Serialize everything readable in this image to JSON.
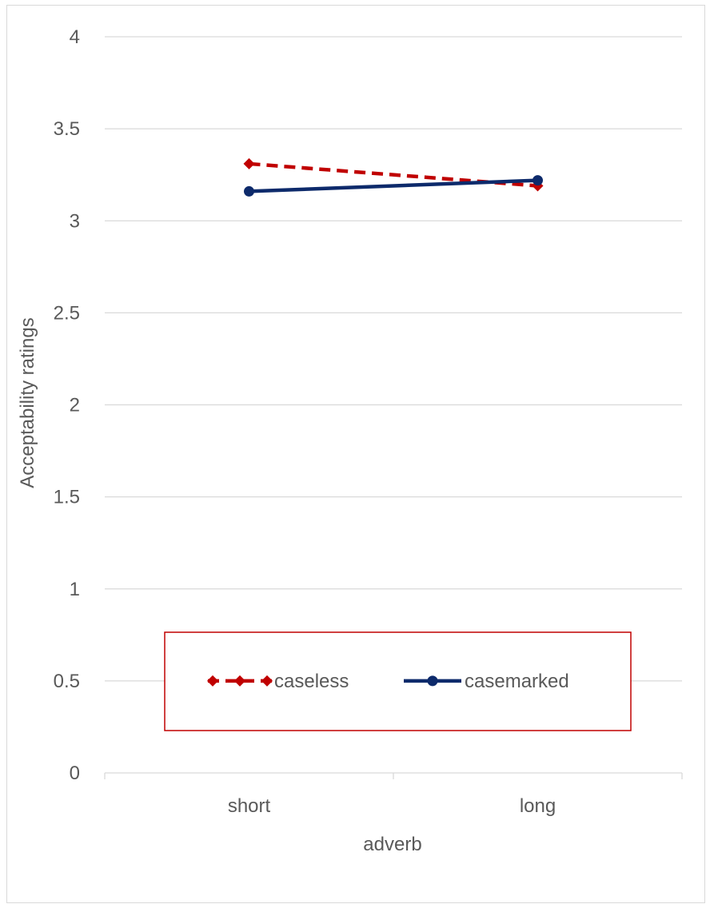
{
  "chart_data": {
    "type": "line",
    "title": "",
    "xlabel": "adverb",
    "ylabel": "Acceptability ratings",
    "categories": [
      "short",
      "long"
    ],
    "ylim": [
      0,
      4
    ],
    "yticks": [
      "0",
      "0.5",
      "1",
      "1.5",
      "2",
      "2.5",
      "3",
      "3.5",
      "4"
    ],
    "grid": true,
    "legend_position": "bottom-inside",
    "series": [
      {
        "name": "caseless",
        "values": [
          3.31,
          3.19
        ],
        "color": "#c00000",
        "line_style": "dashed",
        "marker": "diamond"
      },
      {
        "name": "casemarked",
        "values": [
          3.16,
          3.22
        ],
        "color": "#0d2a6b",
        "line_style": "solid",
        "marker": "circle"
      }
    ],
    "legend_border_color": "#c00000"
  }
}
